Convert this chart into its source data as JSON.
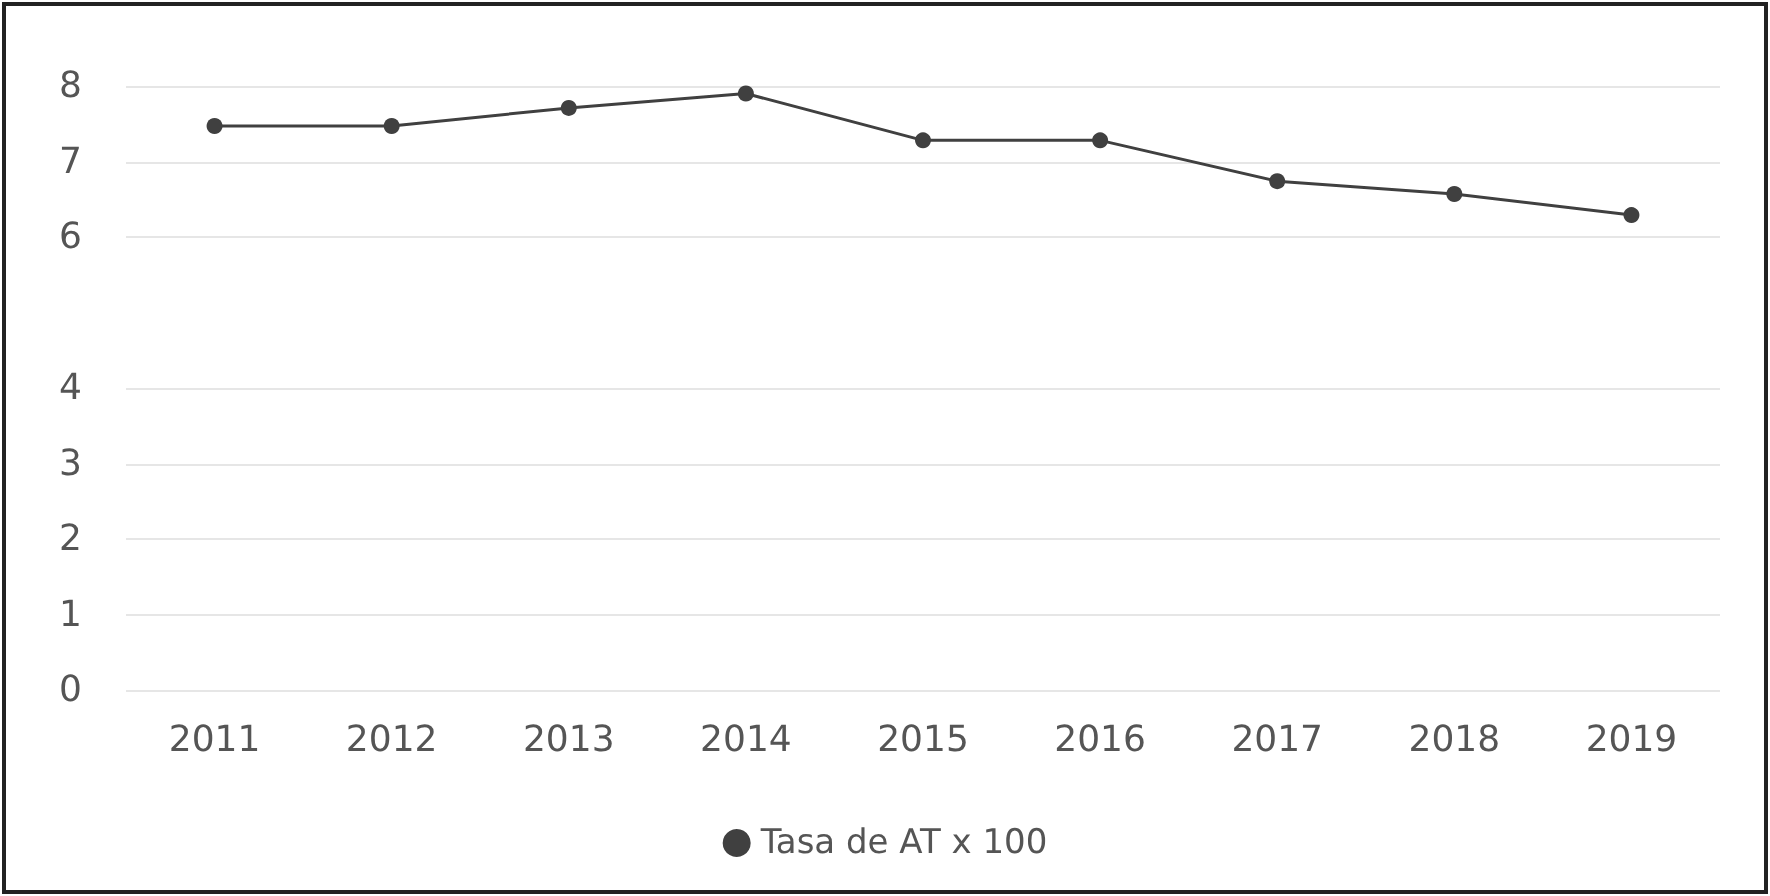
{
  "chart_data": {
    "type": "line",
    "categories": [
      "2011",
      "2012",
      "2013",
      "2014",
      "2015",
      "2016",
      "2017",
      "2018",
      "2019"
    ],
    "series": [
      {
        "name": "Tasa de AT x 100",
        "color": "#404040",
        "values": [
          7.47,
          7.47,
          7.71,
          7.9,
          7.28,
          7.28,
          6.74,
          6.57,
          6.29
        ]
      }
    ],
    "ylim": [
      0,
      8
    ],
    "yticks": [
      0,
      1,
      2,
      3,
      4,
      6,
      7,
      8
    ],
    "grid": "y",
    "legend": "bottom",
    "marker": "circle",
    "line_style": "solid"
  }
}
